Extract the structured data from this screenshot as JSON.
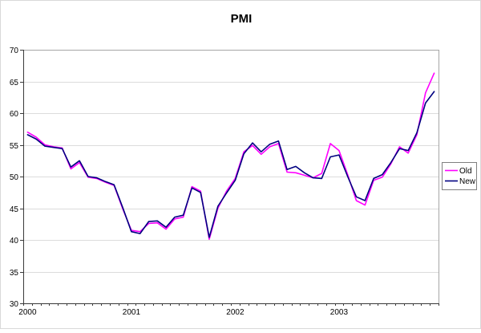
{
  "chart_title": "PMI",
  "colors": {
    "old_series": "#FF00FF",
    "new_series": "#000080",
    "gridline": "#DCDCDC",
    "plot_border": "#A6A6A6",
    "axis_line": "#3A3A3A",
    "legend_border": "#808080",
    "outer_border": "#D9D9D9"
  },
  "legend": {
    "items": [
      {
        "label": "Old"
      },
      {
        "label": "New"
      }
    ]
  },
  "chart_data": {
    "type": "line",
    "title": "PMI",
    "xlabel": "",
    "ylabel": "",
    "ylim": [
      30,
      70
    ],
    "y_ticks": [
      30,
      35,
      40,
      45,
      50,
      55,
      60,
      65,
      70
    ],
    "x_tick_labels": [
      "2000",
      "2001",
      "2002",
      "2003"
    ],
    "months_per_label": 12,
    "n_points": 48,
    "grid": "horizontal",
    "legend_position": "right",
    "series": [
      {
        "name": "Old",
        "color": "#FF00FF",
        "values": [
          57.0,
          56.2,
          55.0,
          54.7,
          54.5,
          51.2,
          52.2,
          49.9,
          49.7,
          49.1,
          48.6,
          44.9,
          41.5,
          41.3,
          42.6,
          42.7,
          41.7,
          43.3,
          43.6,
          48.4,
          47.7,
          40.1,
          45.0,
          47.7,
          49.7,
          53.9,
          54.9,
          53.5,
          54.7,
          55.2,
          50.7,
          50.6,
          50.2,
          49.8,
          50.5,
          55.2,
          54.1,
          50.3,
          46.2,
          45.5,
          49.4,
          49.9,
          52.0,
          54.7,
          53.7,
          56.6,
          63.2,
          66.3
        ]
      },
      {
        "name": "New",
        "color": "#000080",
        "values": [
          56.6,
          55.9,
          54.8,
          54.6,
          54.4,
          51.5,
          52.5,
          50.0,
          49.8,
          49.2,
          48.7,
          45.1,
          41.3,
          41.0,
          42.9,
          43.0,
          42.0,
          43.6,
          43.9,
          48.2,
          47.5,
          40.4,
          45.3,
          47.4,
          49.4,
          53.6,
          55.3,
          53.9,
          55.1,
          55.6,
          51.1,
          51.6,
          50.6,
          49.8,
          49.7,
          53.1,
          53.4,
          50.0,
          46.8,
          46.2,
          49.7,
          50.3,
          52.2,
          54.4,
          54.1,
          56.9,
          61.6,
          63.4
        ]
      }
    ]
  }
}
